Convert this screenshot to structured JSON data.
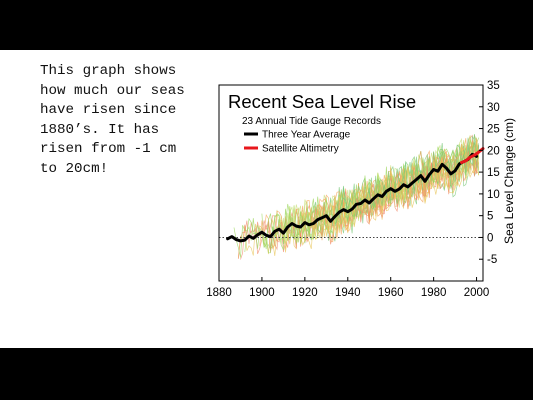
{
  "slide": {
    "caption": "This graph shows how much our seas have risen since 1880’s. It has risen from -1 cm to 20cm!",
    "background_color": "#ffffff",
    "frame_color": "#000000"
  },
  "chart_data": {
    "type": "line",
    "title": "Recent Sea Level Rise",
    "subtitle": "23 Annual Tide Gauge Records",
    "xlabel": "",
    "ylabel": "Sea Level Change (cm)",
    "xlim": [
      1880,
      2003
    ],
    "ylim": [
      -10,
      35
    ],
    "x_ticks": [
      1880,
      1900,
      1920,
      1940,
      1960,
      1980,
      2000
    ],
    "y_ticks": [
      -5,
      0,
      5,
      10,
      15,
      20,
      25,
      30,
      35
    ],
    "y_tick_labels": [
      "-5",
      "0",
      "5",
      "10",
      "15",
      "20",
      "25",
      "30",
      "35"
    ],
    "y_axis_side": "right",
    "zero_line": "dotted",
    "grid": false,
    "legend_position": "top-left",
    "series": [
      {
        "name": "Three Year Average",
        "color": "#000000",
        "x": [
          1884,
          1886,
          1888,
          1890,
          1892,
          1894,
          1896,
          1898,
          1900,
          1902,
          1904,
          1906,
          1908,
          1910,
          1912,
          1914,
          1916,
          1918,
          1920,
          1922,
          1924,
          1926,
          1928,
          1930,
          1932,
          1934,
          1936,
          1938,
          1940,
          1942,
          1944,
          1946,
          1948,
          1950,
          1952,
          1954,
          1956,
          1958,
          1960,
          1962,
          1964,
          1966,
          1968,
          1970,
          1972,
          1974,
          1976,
          1978,
          1980,
          1982,
          1984,
          1986,
          1988,
          1990,
          1992,
          1994,
          1996,
          1998,
          2000
        ],
        "y": [
          -0.3,
          0.2,
          -0.5,
          -0.8,
          -0.6,
          0.3,
          -0.2,
          0.6,
          1.2,
          0.5,
          0.2,
          1.4,
          1.9,
          1.0,
          2.4,
          3.2,
          2.6,
          2.4,
          3.4,
          2.9,
          3.2,
          4.1,
          4.5,
          5.0,
          3.7,
          4.8,
          5.8,
          6.4,
          5.9,
          6.5,
          7.6,
          7.8,
          8.6,
          7.9,
          8.9,
          9.8,
          9.4,
          10.6,
          11.2,
          10.6,
          11.1,
          12.1,
          11.6,
          12.5,
          13.3,
          14.2,
          12.9,
          14.4,
          15.6,
          15.2,
          16.8,
          15.9,
          14.6,
          15.3,
          16.9,
          17.4,
          17.9,
          19.1,
          18.6
        ]
      },
      {
        "name": "Satellite Altimetry",
        "color": "#e8171c",
        "x": [
          1993,
          1995,
          1997,
          1999,
          2001,
          2003
        ],
        "y": [
          17.2,
          17.6,
          18.4,
          18.9,
          19.6,
          20.4
        ]
      }
    ],
    "background_traces": {
      "description_count": 23,
      "colors": [
        "#9ad65a",
        "#c8e07a",
        "#f4a45a",
        "#e8c55a",
        "#78c878",
        "#f08a6a"
      ]
    }
  }
}
